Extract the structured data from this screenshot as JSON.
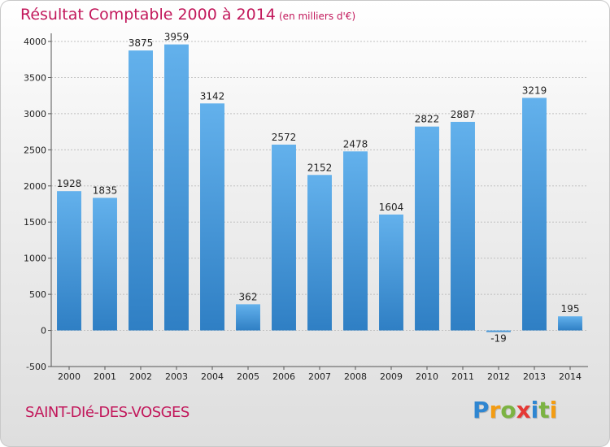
{
  "page": {
    "title": "Résultat Comptable 2000 à 2014",
    "subtitle": "(en milliers d'€)",
    "town": "SAINT-DIé-DES-VOSGES",
    "logo": "Proxiti",
    "logo_colors": [
      "#2f86d1",
      "#f39c12",
      "#7cb342",
      "#e53935",
      "#2f86d1",
      "#7cb342",
      "#f39c12"
    ]
  },
  "colors": {
    "title": "#c2185b",
    "bar_top": "#63b1ec",
    "bar_bottom": "#2f7fc4",
    "grid": "#c0c0c0",
    "text": "#222222"
  },
  "chart_data": {
    "type": "bar",
    "categories": [
      "2000",
      "2001",
      "2002",
      "2003",
      "2004",
      "2005",
      "2006",
      "2007",
      "2008",
      "2009",
      "2010",
      "2011",
      "2012",
      "2013",
      "2014"
    ],
    "values": [
      1928,
      1835,
      3875,
      3959,
      3142,
      362,
      2572,
      2152,
      2478,
      1604,
      2822,
      2887,
      -19,
      3219,
      195
    ],
    "value_labels": [
      "1928",
      "1835",
      "3875",
      "3959",
      "3142",
      "362",
      "2572",
      "2152",
      "2478",
      "1604",
      "2822",
      "2887",
      "-19",
      "3219",
      "195"
    ],
    "ylim": [
      -500,
      4000
    ],
    "yticks": [
      -500,
      0,
      500,
      1000,
      1500,
      2000,
      2500,
      3000,
      3500,
      4000
    ],
    "grid": true,
    "legend": "none"
  }
}
